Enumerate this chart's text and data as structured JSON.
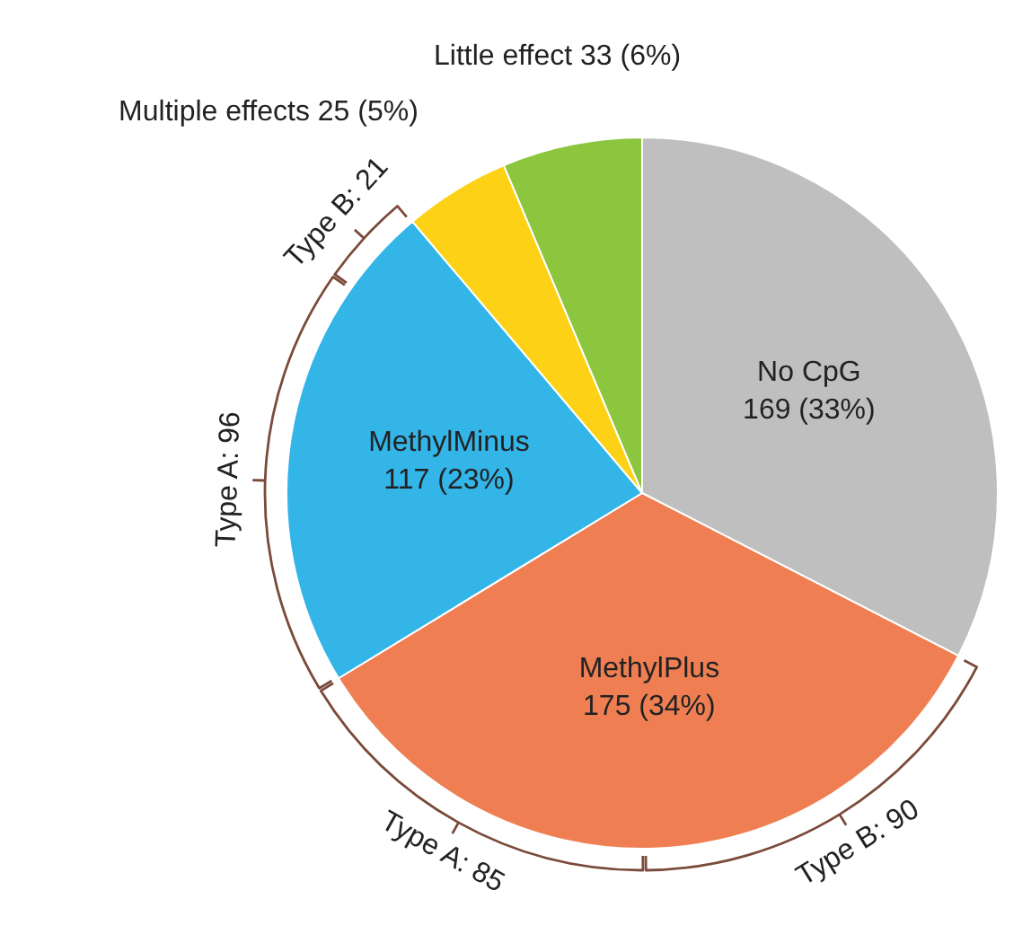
{
  "chart_data": {
    "type": "pie",
    "categories": [
      "No CpG",
      "MethylPlus",
      "MethylMinus",
      "Multiple effects",
      "Little effect"
    ],
    "values": [
      169,
      175,
      117,
      25,
      33
    ],
    "value_labels": [
      "169 (33%)",
      "175 (34%)",
      "117 (23%)",
      "25 (5%)",
      "33 (6%)"
    ],
    "colors": [
      "#c0bfbf",
      "#ef7f53",
      "#33b5e8",
      "#fcd116",
      "#8cc63f"
    ],
    "annotations": [
      {
        "text": "Type B: 90",
        "x": "MethylPlus"
      },
      {
        "text": "Type A: 85",
        "x": "MethylPlus"
      },
      {
        "text": "Type A: 96",
        "x": "MethylMinus"
      },
      {
        "text": "Type B: 21",
        "x": "MethylMinus"
      }
    ],
    "legend": false
  }
}
